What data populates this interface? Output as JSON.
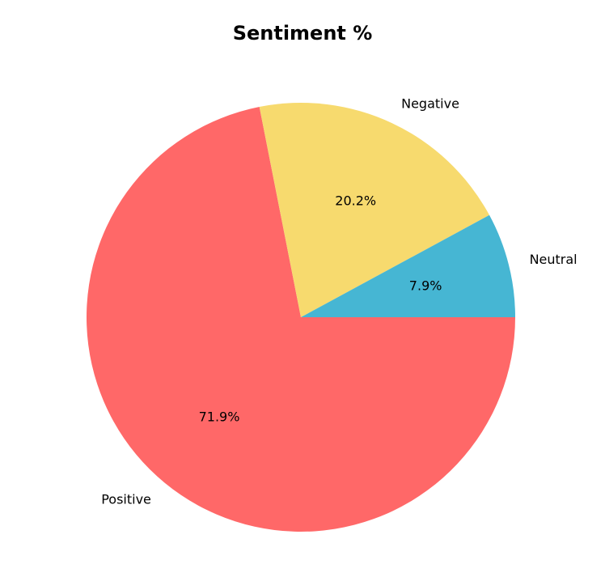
{
  "chart_data": {
    "type": "pie",
    "title": "Sentiment %",
    "categories": [
      "Positive",
      "Negative",
      "Neutral"
    ],
    "values": [
      71.9,
      20.2,
      7.9
    ],
    "value_labels": [
      "71.9%",
      "20.2%",
      "7.9%"
    ],
    "colors": [
      "#ff6868",
      "#f7da6e",
      "#46b6d3"
    ],
    "start_angle_deg": 0,
    "direction": "clockwise",
    "legend": "none"
  }
}
